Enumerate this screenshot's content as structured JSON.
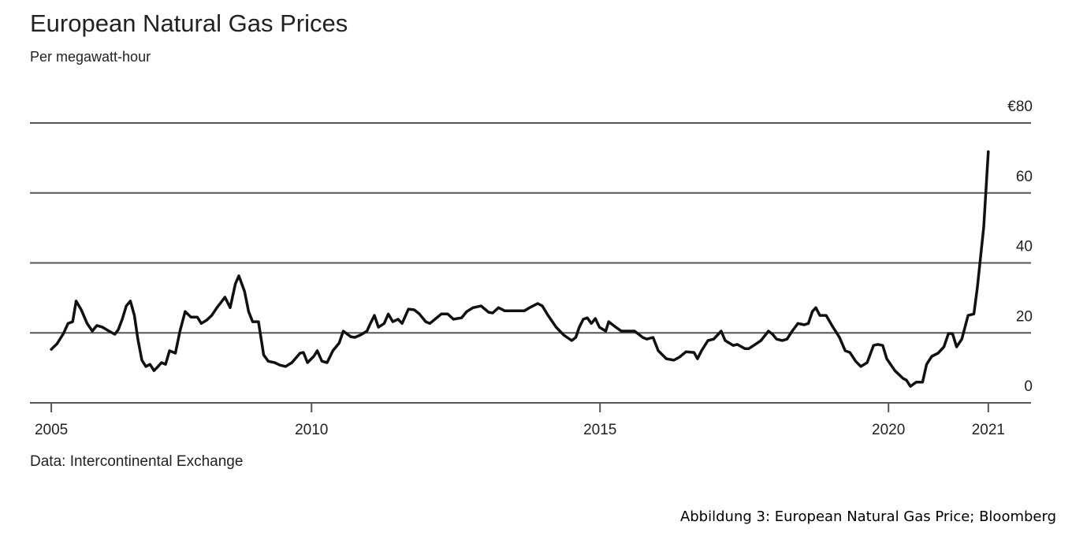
{
  "chart_data": {
    "type": "line",
    "title": "European Natural Gas Prices",
    "subtitle": "Per megawatt-hour",
    "source": "Data: Intercontinental Exchange",
    "caption": "Abbildung 3: European Natural Gas Price; Bloomberg",
    "color": "#111111",
    "grid": true,
    "xlim": [
      2005.12,
      2022.47
    ],
    "xticks": [
      {
        "value": 2005.49,
        "label": "2005"
      },
      2010,
      2015,
      2020,
      {
        "value": 2021.73,
        "label": "2021"
      }
    ],
    "ylim": [
      0,
      80
    ],
    "yticks": [
      0,
      20,
      40,
      60,
      {
        "value": 80,
        "label": "€80"
      }
    ],
    "x": [
      2005.49,
      2005.59,
      2005.7,
      2005.78,
      2005.86,
      2005.92,
      2006.01,
      2006.11,
      2006.2,
      2006.28,
      2006.38,
      2006.49,
      2006.59,
      2006.65,
      2006.72,
      2006.79,
      2006.86,
      2006.93,
      2006.99,
      2007.06,
      2007.13,
      2007.2,
      2007.27,
      2007.34,
      2007.4,
      2007.47,
      2007.54,
      2007.64,
      2007.72,
      2007.81,
      2007.91,
      2008.02,
      2008.09,
      2008.18,
      2008.27,
      2008.36,
      2008.5,
      2008.59,
      2008.68,
      2008.74,
      2008.84,
      2008.91,
      2008.98,
      2009.08,
      2009.17,
      2009.25,
      2009.36,
      2009.45,
      2009.55,
      2009.66,
      2009.8,
      2009.86,
      2009.93,
      2010.04,
      2010.1,
      2010.18,
      2010.27,
      2010.37,
      2010.48,
      2010.55,
      2010.68,
      2010.75,
      2010.85,
      2010.96,
      2011.02,
      2011.09,
      2011.16,
      2011.26,
      2011.33,
      2011.41,
      2011.5,
      2011.57,
      2011.68,
      2011.78,
      2011.87,
      2011.98,
      2012.05,
      2012.14,
      2012.25,
      2012.36,
      2012.46,
      2012.6,
      2012.69,
      2012.8,
      2012.94,
      2013.07,
      2013.14,
      2013.24,
      2013.35,
      2013.48,
      2013.69,
      2013.78,
      2013.92,
      2014.0,
      2014.1,
      2014.24,
      2014.37,
      2014.51,
      2014.58,
      2014.64,
      2014.71,
      2014.78,
      2014.85,
      2014.92,
      2014.99,
      2015.1,
      2015.15,
      2015.26,
      2015.37,
      2015.46,
      2015.6,
      2015.74,
      2015.81,
      2015.92,
      2016.01,
      2016.15,
      2016.28,
      2016.38,
      2016.49,
      2016.63,
      2016.69,
      2016.76,
      2016.87,
      2016.97,
      2017.1,
      2017.17,
      2017.31,
      2017.38,
      2017.51,
      2017.58,
      2017.69,
      2017.79,
      2017.92,
      2017.99,
      2018.06,
      2018.16,
      2018.24,
      2018.33,
      2018.43,
      2018.54,
      2018.61,
      2018.68,
      2018.74,
      2018.81,
      2018.92,
      2019.02,
      2019.15,
      2019.25,
      2019.33,
      2019.43,
      2019.52,
      2019.63,
      2019.74,
      2019.81,
      2019.9,
      2019.97,
      2020.11,
      2020.25,
      2020.31,
      2020.38,
      2020.48,
      2020.59,
      2020.66,
      2020.75,
      2020.86,
      2020.96,
      2021.04,
      2021.11,
      2021.18,
      2021.27,
      2021.38,
      2021.48,
      2021.54,
      2021.65,
      2021.73
    ],
    "values": [
      15.3,
      16.9,
      19.8,
      22.7,
      23.2,
      29.1,
      26.6,
      22.7,
      20.5,
      22.1,
      21.6,
      20.5,
      19.6,
      20.9,
      23.9,
      27.7,
      29.1,
      25.0,
      18.2,
      12.2,
      10.4,
      11.0,
      9.2,
      10.4,
      11.5,
      11.0,
      14.9,
      14.2,
      20.5,
      26.1,
      24.5,
      24.5,
      22.7,
      23.6,
      25.0,
      27.2,
      30.2,
      27.2,
      34.0,
      36.3,
      31.8,
      26.1,
      23.2,
      23.2,
      13.7,
      11.9,
      11.5,
      10.8,
      10.4,
      11.5,
      14.2,
      14.4,
      11.5,
      13.3,
      14.9,
      11.9,
      11.5,
      14.9,
      17.1,
      20.5,
      18.9,
      18.7,
      19.4,
      20.5,
      22.7,
      25.0,
      21.6,
      22.7,
      25.4,
      23.2,
      23.9,
      22.7,
      26.8,
      26.6,
      25.4,
      23.2,
      22.7,
      23.9,
      25.4,
      25.4,
      23.9,
      24.3,
      26.1,
      27.2,
      27.7,
      25.9,
      25.7,
      27.2,
      26.3,
      26.3,
      26.3,
      27.2,
      28.4,
      27.7,
      25.0,
      21.6,
      19.4,
      17.8,
      18.7,
      21.6,
      23.9,
      24.3,
      22.7,
      24.1,
      21.6,
      20.5,
      23.2,
      21.8,
      20.5,
      20.5,
      20.5,
      18.7,
      18.2,
      18.7,
      14.9,
      12.6,
      12.2,
      13.1,
      14.6,
      14.4,
      12.6,
      14.9,
      17.8,
      18.2,
      20.5,
      17.8,
      16.4,
      16.7,
      15.5,
      15.5,
      16.7,
      17.8,
      20.5,
      19.6,
      18.2,
      17.8,
      18.2,
      20.5,
      22.7,
      22.3,
      22.7,
      26.1,
      27.2,
      25.0,
      25.0,
      22.1,
      18.7,
      14.9,
      14.4,
      11.9,
      10.4,
      11.5,
      16.4,
      16.7,
      16.4,
      12.6,
      9.2,
      7.0,
      6.5,
      4.7,
      5.9,
      5.9,
      11.0,
      13.3,
      14.2,
      16.0,
      19.8,
      19.8,
      16.0,
      18.2,
      25.0,
      25.4,
      32.9,
      50.2,
      71.8
    ]
  }
}
